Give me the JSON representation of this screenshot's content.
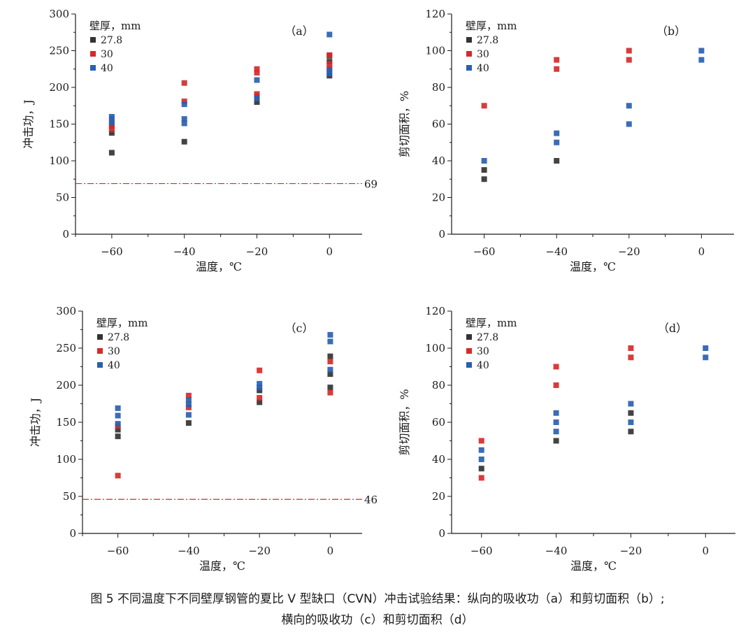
{
  "colors": {
    "s27_8": "#333333",
    "s30": "#d62a2a",
    "s40": "#2a5fb0",
    "threshold": "#d62a2a",
    "axis": "#1a1a1a"
  },
  "caption": {
    "line1": "图 5 不同温度下不同壁厚钢管的夏比 V 型缺口（CVN）冲击试验结果：纵向的吸收功（a）和剪切面积（b）;",
    "line2": "横向的吸收功（c）和剪切面积（d）"
  },
  "chart_data": [
    {
      "type": "scatter",
      "panel_label": "（a）",
      "xlabel": "温度，℃",
      "ylabel": "冲击功，J",
      "xlim": [
        -70,
        9
      ],
      "ylim": [
        0,
        300
      ],
      "xticks": [
        "−60",
        "−40",
        "−20",
        "0"
      ],
      "xtick_values": [
        -60,
        -40,
        -20,
        0
      ],
      "yticks": [
        "0",
        "50",
        "100",
        "150",
        "200",
        "250",
        "300"
      ],
      "ytick_values": [
        0,
        50,
        100,
        150,
        200,
        250,
        300
      ],
      "legend_title": "壁厚，mm",
      "legend_position": "top-left",
      "threshold": {
        "value": 69,
        "label": "69"
      },
      "series": [
        {
          "name": "27.8",
          "x": [
            -60,
            -60,
            -60,
            -40,
            -20,
            -20,
            0,
            0,
            0
          ],
          "y": [
            111,
            138,
            147,
            126,
            180,
            188,
            216,
            235,
            243
          ]
        },
        {
          "name": "30",
          "x": [
            -60,
            -60,
            -40,
            -40,
            -20,
            -20,
            -20,
            0,
            0,
            0
          ],
          "y": [
            143,
            150,
            181,
            206,
            191,
            220,
            225,
            226,
            232,
            244
          ]
        },
        {
          "name": "40",
          "x": [
            -60,
            -60,
            -60,
            -40,
            -40,
            -40,
            -20,
            -20,
            0,
            0,
            0
          ],
          "y": [
            152,
            157,
            160,
            151,
            157,
            177,
            185,
            210,
            219,
            224,
            272
          ]
        }
      ]
    },
    {
      "type": "scatter",
      "panel_label": "（b）",
      "xlabel": "温度，℃",
      "ylabel": "剪切面积，%",
      "xlim": [
        -69,
        9
      ],
      "ylim": [
        0,
        120
      ],
      "xticks": [
        "−60",
        "−40",
        "−20",
        "0"
      ],
      "xtick_values": [
        -60,
        -40,
        -20,
        0
      ],
      "yticks": [
        "0",
        "20",
        "40",
        "60",
        "80",
        "100",
        "120"
      ],
      "ytick_values": [
        0,
        20,
        40,
        60,
        80,
        100,
        120
      ],
      "legend_title": "壁厚，mm",
      "legend_position": "top-left",
      "series": [
        {
          "name": "27.8",
          "x": [
            -60,
            -60,
            -40
          ],
          "y": [
            30,
            35,
            40
          ]
        },
        {
          "name": "30",
          "x": [
            -60,
            -40,
            -40,
            -20,
            -20
          ],
          "y": [
            70,
            90,
            95,
            95,
            100
          ]
        },
        {
          "name": "40",
          "x": [
            -60,
            -40,
            -40,
            -20,
            -20,
            0,
            0
          ],
          "y": [
            40,
            50,
            55,
            60,
            70,
            95,
            100
          ]
        }
      ]
    },
    {
      "type": "scatter",
      "panel_label": "（c）",
      "xlabel": "温度，℃",
      "ylabel": "冲击功，J",
      "xlim": [
        -70,
        9
      ],
      "ylim": [
        0,
        300
      ],
      "xticks": [
        "−60",
        "−40",
        "−20",
        "0"
      ],
      "xtick_values": [
        -60,
        -40,
        -20,
        0
      ],
      "yticks": [
        "0",
        "50",
        "100",
        "150",
        "200",
        "250",
        "300"
      ],
      "ytick_values": [
        0,
        50,
        100,
        150,
        200,
        250,
        300
      ],
      "legend_title": "壁厚，mm",
      "legend_position": "top-left",
      "threshold": {
        "value": 46,
        "label": "46"
      },
      "series": [
        {
          "name": "27.8",
          "x": [
            -60,
            -60,
            -40,
            -20,
            -20,
            0,
            0,
            0
          ],
          "y": [
            131,
            140,
            149,
            177,
            193,
            197,
            215,
            239
          ]
        },
        {
          "name": "30",
          "x": [
            -60,
            -60,
            -40,
            -40,
            -20,
            -20,
            0,
            0
          ],
          "y": [
            78,
            145,
            170,
            186,
            183,
            220,
            190,
            232
          ]
        },
        {
          "name": "40",
          "x": [
            -60,
            -60,
            -60,
            -40,
            -40,
            -40,
            -20,
            -20,
            0,
            0,
            0
          ],
          "y": [
            148,
            159,
            169,
            160,
            174,
            180,
            197,
            202,
            221,
            259,
            268
          ]
        }
      ]
    },
    {
      "type": "scatter",
      "panel_label": "（d）",
      "xlabel": "温度，℃",
      "ylabel": "剪切面积，%",
      "xlim": [
        -68,
        8
      ],
      "ylim": [
        0,
        120
      ],
      "xticks": [
        "−60",
        "−40",
        "−20",
        "0"
      ],
      "xtick_values": [
        -60,
        -40,
        -20,
        0
      ],
      "yticks": [
        "0",
        "20",
        "40",
        "60",
        "80",
        "100",
        "120"
      ],
      "ytick_values": [
        0,
        20,
        40,
        60,
        80,
        100,
        120
      ],
      "legend_title": "壁厚，mm",
      "legend_position": "top-left",
      "series": [
        {
          "name": "27.8",
          "x": [
            -60,
            -40,
            -20,
            -20
          ],
          "y": [
            35,
            50,
            55,
            65
          ]
        },
        {
          "name": "30",
          "x": [
            -60,
            -60,
            -40,
            -40,
            -20,
            -20
          ],
          "y": [
            30,
            50,
            80,
            90,
            95,
            100
          ]
        },
        {
          "name": "40",
          "x": [
            -60,
            -60,
            -40,
            -40,
            -40,
            -20,
            -20,
            0,
            0
          ],
          "y": [
            40,
            45,
            55,
            60,
            65,
            60,
            70,
            95,
            100
          ]
        }
      ]
    }
  ]
}
